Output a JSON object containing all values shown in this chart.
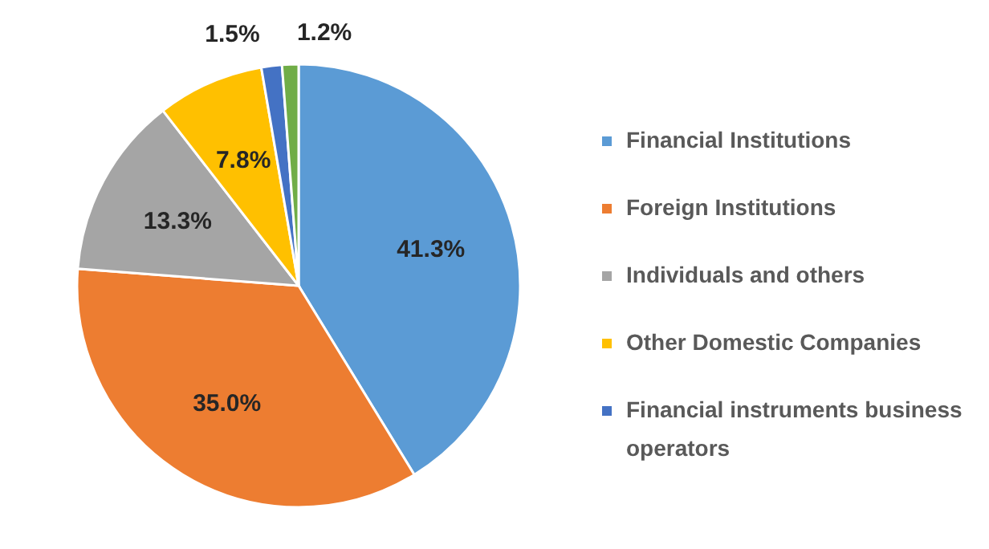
{
  "chart_data": {
    "type": "pie",
    "categories": [
      "Financial Institutions",
      "Foreign Institutions",
      "Individuals and others",
      "Other Domestic Companies",
      "Financial instruments business operators",
      null
    ],
    "values": [
      41.3,
      35.0,
      13.3,
      7.8,
      1.5,
      1.2
    ],
    "colors": [
      "#5b9bd5",
      "#ed7d31",
      "#a5a5a5",
      "#ffc000",
      "#4472c4",
      "#70ad47"
    ],
    "value_labels": [
      "41.3%",
      "35.0%",
      "13.3%",
      "7.8%",
      "1.5%",
      "1.2%"
    ],
    "legend": "right"
  }
}
